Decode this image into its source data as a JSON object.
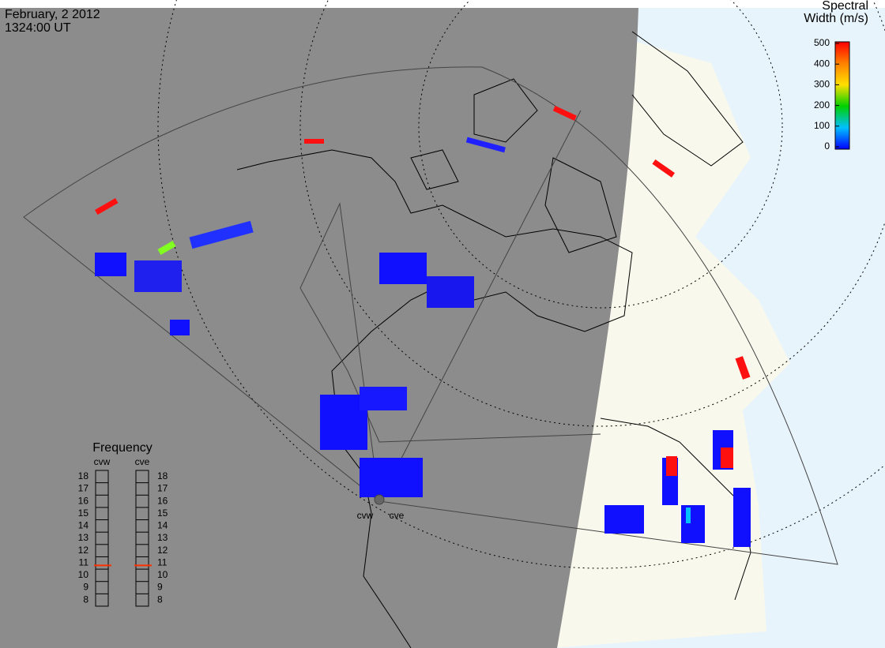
{
  "header": {
    "date": "February, 2 2012",
    "time": "1324:00 UT"
  },
  "colorbar": {
    "title": [
      "Spectral",
      "Width (m/s)"
    ],
    "lim": [
      0,
      500
    ],
    "ticks": [
      0,
      100,
      200,
      300,
      400,
      500
    ]
  },
  "frequency": {
    "title": "Frequency",
    "lim": [
      8,
      18
    ],
    "ticks": [
      8,
      9,
      10,
      11,
      12,
      13,
      14,
      15,
      16,
      17,
      18
    ],
    "radars": [
      {
        "name": "cvw",
        "value": 10.8
      },
      {
        "name": "cve",
        "value": 10.8
      }
    ]
  },
  "radar_labels": [
    "cvw",
    "cve"
  ]
}
